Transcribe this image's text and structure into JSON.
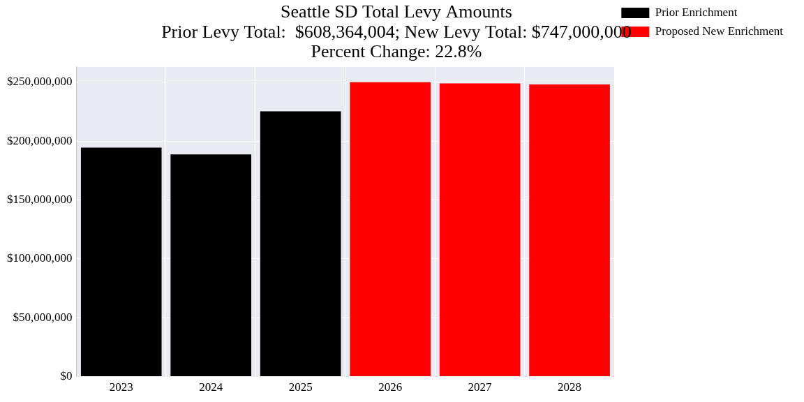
{
  "chart_data": {
    "type": "bar",
    "title": [
      "Seattle SD Total Levy Amounts",
      "Prior Levy Total:  $608,364,004; New Levy Total: $747,000,000",
      "Percent Change: 22.8%"
    ],
    "categories": [
      "2023",
      "2024",
      "2025",
      "2026",
      "2027",
      "2028"
    ],
    "series": [
      {
        "name": "Prior Enrichment",
        "color": "#000000",
        "values": [
          194500000,
          188700000,
          225200000,
          null,
          null,
          null
        ]
      },
      {
        "name": "Proposed New Enrichment",
        "color": "#ff0000",
        "values": [
          null,
          null,
          null,
          250000000,
          249000000,
          248000000
        ]
      }
    ],
    "ylim": [
      0,
      263000000
    ],
    "yticks": [
      {
        "value": 0,
        "label": "$0"
      },
      {
        "value": 50000000,
        "label": "$50,000,000"
      },
      {
        "value": 100000000,
        "label": "$100,000,000"
      },
      {
        "value": 150000000,
        "label": "$150,000,000"
      },
      {
        "value": 200000000,
        "label": "$200,000,000"
      },
      {
        "value": 250000000,
        "label": "$250,000,000"
      }
    ],
    "grid": true,
    "legend": "upper right"
  }
}
